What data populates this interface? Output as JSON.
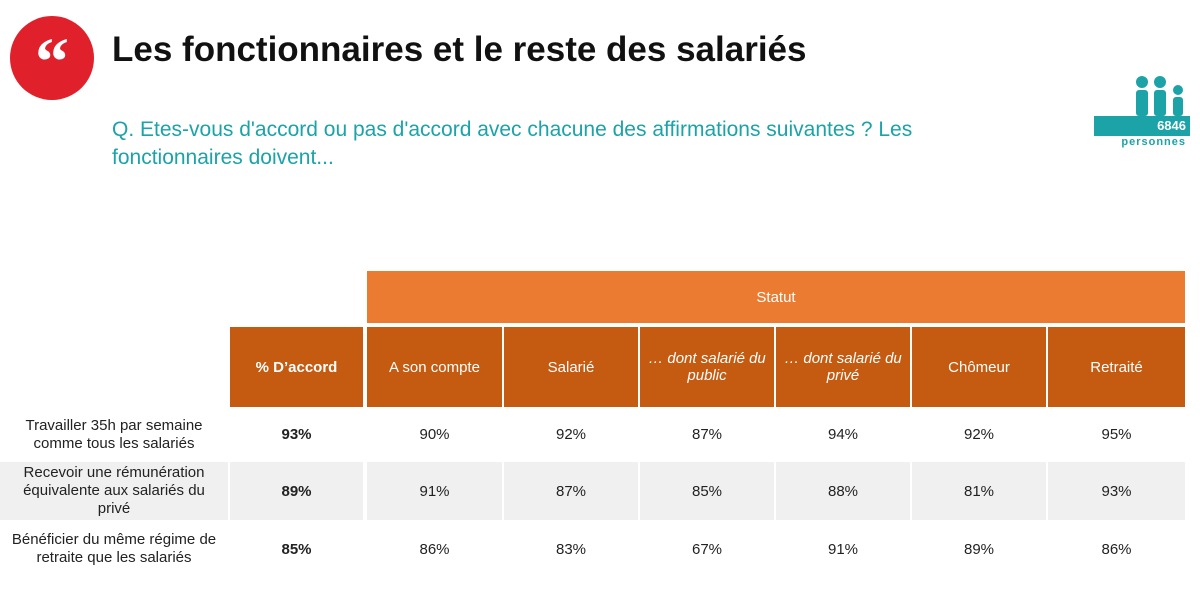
{
  "header": {
    "title": "Les fonctionnaires et le reste des salariés",
    "question": "Q. Etes-vous d'accord ou pas d'accord avec chacune des affirmations suivantes ? Les fonctionnaires doivent...",
    "sample_size": "6846",
    "sample_unit": "personnes"
  },
  "table": {
    "group_header": "Statut",
    "columns": [
      "% D’accord",
      "A son compte",
      "Salarié",
      "… dont salarié du public",
      "… dont salarié du privé",
      "Chômeur",
      "Retraité"
    ],
    "rows": [
      {
        "label": "Travailler 35h par semaine comme tous les salariés",
        "cells": [
          "93%",
          "90%",
          "92%",
          "87%",
          "94%",
          "92%",
          "95%"
        ]
      },
      {
        "label": "Recevoir une rémunération équivalente aux salariés du privé",
        "cells": [
          "89%",
          "91%",
          "87%",
          "85%",
          "88%",
          "81%",
          "93%"
        ]
      },
      {
        "label": "Bénéficier du même régime de retraite que les salariés",
        "cells": [
          "85%",
          "86%",
          "83%",
          "67%",
          "91%",
          "89%",
          "86%"
        ]
      }
    ]
  }
}
